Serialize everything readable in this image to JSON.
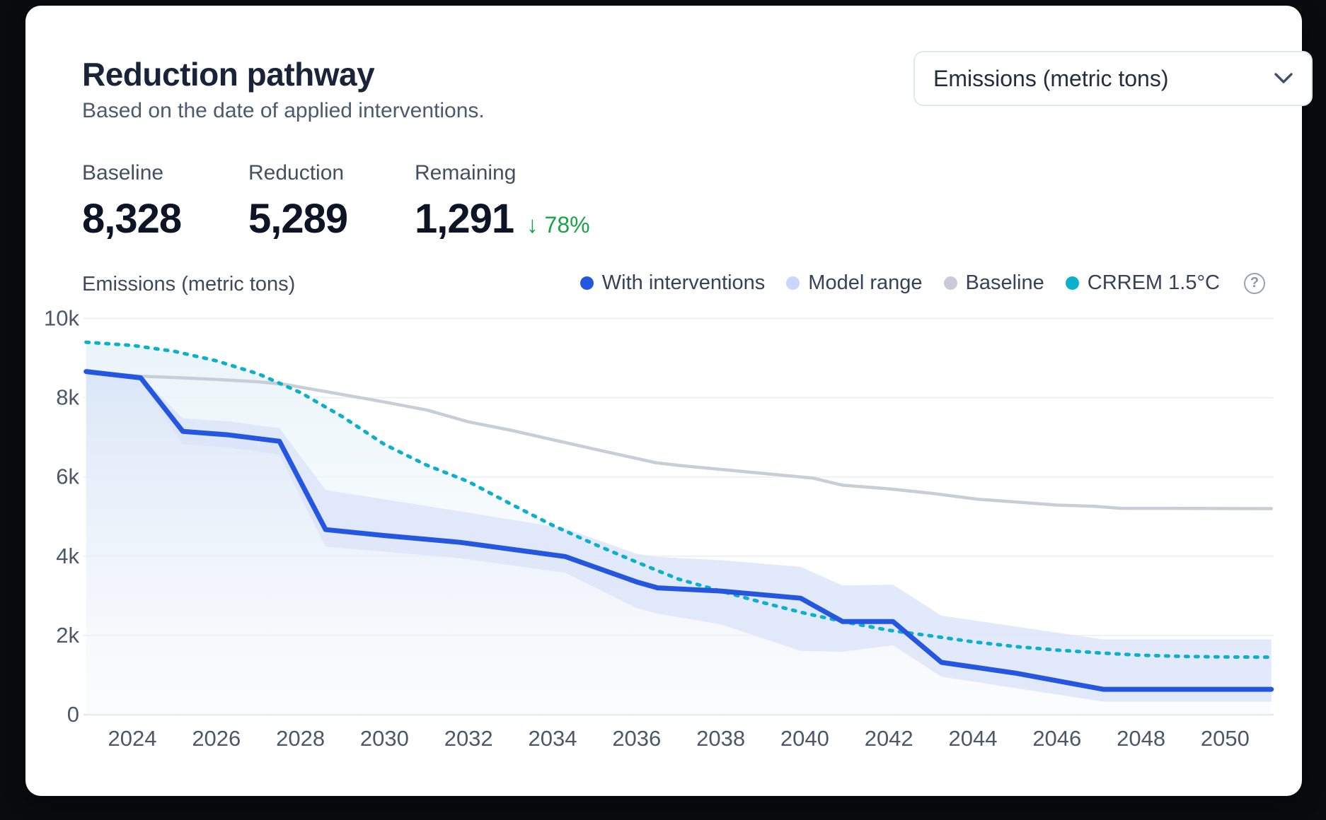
{
  "card": {
    "title": "Reduction pathway",
    "subtitle": "Based on the date of applied interventions.",
    "unit_selector": {
      "value": "Emissions (metric tons)",
      "chevron_icon": "chevron-down"
    },
    "stats": [
      {
        "label": "Baseline",
        "value": "8,328"
      },
      {
        "label": "Reduction",
        "value": "5,289"
      },
      {
        "label": "Remaining",
        "value": "1,291",
        "delta_arrow": "↓",
        "delta": "78%",
        "delta_color": "#17a34a"
      }
    ],
    "axis_title": "Emissions (metric tons)",
    "legend": [
      {
        "label": "With interventions",
        "color": "#2456e0",
        "style": "solid"
      },
      {
        "label": "Model range",
        "color": "#c9d8f8",
        "style": "band"
      },
      {
        "label": "Baseline",
        "color": "#c6ccd6",
        "style": "solid"
      },
      {
        "label": "CRREM 1.5°C",
        "color": "#0db0ca",
        "style": "dashed",
        "help_icon": true
      }
    ]
  },
  "chart_data": {
    "type": "line",
    "title": "Reduction pathway",
    "ylabel": "Emissions (metric tons)",
    "ylim": [
      0,
      10000
    ],
    "x_range": [
      2022.9,
      2051.1
    ],
    "grid": "horizontal",
    "legend_position": "top-right",
    "y_ticks": [
      {
        "v": 0,
        "label": "0"
      },
      {
        "v": 2000,
        "label": "2k"
      },
      {
        "v": 4000,
        "label": "4k"
      },
      {
        "v": 6000,
        "label": "6k"
      },
      {
        "v": 8000,
        "label": "8k"
      },
      {
        "v": 10000,
        "label": "10k"
      }
    ],
    "x_ticks": [
      "2024",
      "2026",
      "2028",
      "2030",
      "2032",
      "2034",
      "2036",
      "2038",
      "2040",
      "2042",
      "2044",
      "2046",
      "2048",
      "2050"
    ],
    "colors": {
      "with_interventions": "#2456e0",
      "model_range_fill": "#dbe4f9",
      "baseline": "#c8ced8",
      "crrem": "#0db0ca",
      "gridline": "#edf1f6",
      "zero_axis": "#e2e7ee",
      "tick_text": "#4b5869"
    },
    "series": [
      {
        "name": "With interventions",
        "type": "line",
        "color": "#2456e0",
        "points": [
          [
            2022.9,
            8660
          ],
          [
            2024.2,
            8500
          ],
          [
            2025.2,
            7150
          ],
          [
            2026.3,
            7060
          ],
          [
            2027.5,
            6900
          ],
          [
            2028.6,
            4670
          ],
          [
            2030,
            4520
          ],
          [
            2031.8,
            4350
          ],
          [
            2034.3,
            3990
          ],
          [
            2036,
            3350
          ],
          [
            2036.5,
            3200
          ],
          [
            2038,
            3120
          ],
          [
            2039.9,
            2940
          ],
          [
            2040.9,
            2350
          ],
          [
            2042.1,
            2350
          ],
          [
            2043.25,
            1320
          ],
          [
            2045,
            1050
          ],
          [
            2047.1,
            640
          ],
          [
            2051.1,
            640
          ]
        ]
      },
      {
        "name": "Model range",
        "type": "band",
        "color": "#dbe4f9",
        "upper": [
          [
            2022.9,
            8740
          ],
          [
            2024.2,
            8560
          ],
          [
            2025.2,
            7480
          ],
          [
            2026.3,
            7400
          ],
          [
            2027.5,
            7230
          ],
          [
            2028.6,
            5670
          ],
          [
            2031.8,
            5130
          ],
          [
            2034.3,
            4700
          ],
          [
            2036,
            4060
          ],
          [
            2036.5,
            3980
          ],
          [
            2038,
            3900
          ],
          [
            2039.9,
            3730
          ],
          [
            2040.9,
            3260
          ],
          [
            2042.1,
            3280
          ],
          [
            2043.25,
            2500
          ],
          [
            2047.1,
            1900
          ],
          [
            2051.1,
            1900
          ]
        ],
        "lower": [
          [
            2022.9,
            8560
          ],
          [
            2024.2,
            8380
          ],
          [
            2025.2,
            6820
          ],
          [
            2026.3,
            6740
          ],
          [
            2027.5,
            6560
          ],
          [
            2028.6,
            4240
          ],
          [
            2031.8,
            3950
          ],
          [
            2034.3,
            3580
          ],
          [
            2036,
            2690
          ],
          [
            2036.5,
            2550
          ],
          [
            2038,
            2280
          ],
          [
            2039.9,
            1610
          ],
          [
            2040.9,
            1590
          ],
          [
            2042.1,
            1750
          ],
          [
            2043.25,
            960
          ],
          [
            2047.1,
            330
          ],
          [
            2051.1,
            330
          ]
        ]
      },
      {
        "name": "Baseline",
        "type": "line",
        "color": "#c8ced8",
        "points": [
          [
            2022.9,
            8660
          ],
          [
            2024.2,
            8540
          ],
          [
            2025,
            8510
          ],
          [
            2026,
            8460
          ],
          [
            2027,
            8400
          ],
          [
            2027.6,
            8340
          ],
          [
            2029,
            8080
          ],
          [
            2030,
            7890
          ],
          [
            2031,
            7690
          ],
          [
            2032,
            7390
          ],
          [
            2033,
            7180
          ],
          [
            2034,
            6940
          ],
          [
            2035,
            6700
          ],
          [
            2036.45,
            6360
          ],
          [
            2037,
            6290
          ],
          [
            2038,
            6190
          ],
          [
            2039,
            6090
          ],
          [
            2040.2,
            5970
          ],
          [
            2040.9,
            5790
          ],
          [
            2042,
            5700
          ],
          [
            2043,
            5590
          ],
          [
            2044.1,
            5440
          ],
          [
            2046,
            5290
          ],
          [
            2046.9,
            5260
          ],
          [
            2047.5,
            5210
          ],
          [
            2051.1,
            5200
          ]
        ]
      },
      {
        "name": "CRREM 1.5°C",
        "type": "line",
        "style": "dashed",
        "color": "#0db0ca",
        "points": [
          [
            2022.9,
            9400
          ],
          [
            2024,
            9320
          ],
          [
            2025,
            9170
          ],
          [
            2026,
            8930
          ],
          [
            2027,
            8600
          ],
          [
            2028,
            8130
          ],
          [
            2029,
            7520
          ],
          [
            2030,
            6820
          ],
          [
            2031,
            6300
          ],
          [
            2032,
            5880
          ],
          [
            2033,
            5320
          ],
          [
            2034,
            4780
          ],
          [
            2035,
            4300
          ],
          [
            2036,
            3850
          ],
          [
            2037,
            3420
          ],
          [
            2038,
            3120
          ],
          [
            2039,
            2830
          ],
          [
            2040,
            2560
          ],
          [
            2041,
            2330
          ],
          [
            2042,
            2130
          ],
          [
            2043,
            1990
          ],
          [
            2044,
            1840
          ],
          [
            2045,
            1720
          ],
          [
            2046,
            1630
          ],
          [
            2047,
            1560
          ],
          [
            2048,
            1500
          ],
          [
            2049,
            1470
          ],
          [
            2050,
            1455
          ],
          [
            2051.1,
            1450
          ]
        ]
      }
    ]
  }
}
